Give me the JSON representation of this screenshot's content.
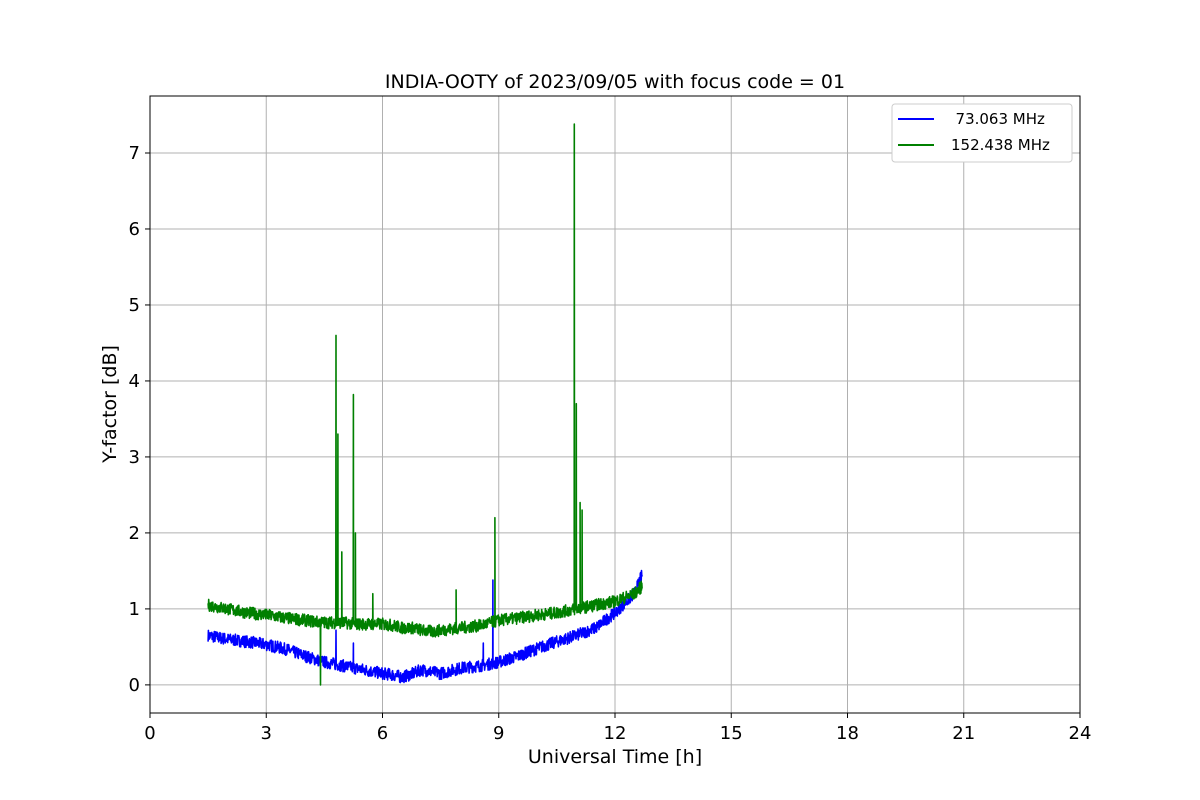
{
  "chart_data": {
    "type": "line",
    "title": "INDIA-OOTY of 2023/09/05 with focus code = 01",
    "xlabel": "Universal Time [h]",
    "ylabel": "Y-factor [dB]",
    "xlim": [
      0,
      24
    ],
    "ylim": [
      -0.37,
      7.75
    ],
    "xticks": [
      0,
      3,
      6,
      9,
      12,
      15,
      18,
      21,
      24
    ],
    "yticks": [
      0,
      1,
      2,
      3,
      4,
      5,
      6,
      7
    ],
    "grid": true,
    "legend_position": "top-right",
    "series": [
      {
        "name": "  73.063 MHz",
        "color": "#0000ff",
        "x": [
          1.5,
          2.0,
          2.5,
          3.0,
          3.5,
          4.0,
          4.3,
          4.5,
          4.8,
          5.0,
          5.3,
          5.5,
          5.8,
          6.0,
          6.3,
          6.5,
          6.8,
          7.0,
          7.3,
          7.5,
          8.0,
          8.5,
          8.8,
          9.0,
          9.5,
          10.0,
          10.5,
          11.0,
          11.5,
          12.0,
          12.5,
          12.7
        ],
        "y": [
          0.65,
          0.6,
          0.57,
          0.53,
          0.47,
          0.38,
          0.33,
          0.3,
          0.27,
          0.25,
          0.22,
          0.2,
          0.17,
          0.15,
          0.13,
          0.1,
          0.15,
          0.2,
          0.17,
          0.15,
          0.22,
          0.25,
          0.28,
          0.3,
          0.38,
          0.48,
          0.57,
          0.65,
          0.75,
          0.95,
          1.2,
          1.45
        ]
      },
      {
        "name": "152.438 MHz",
        "color": "#008000",
        "x": [
          1.5,
          2.0,
          2.5,
          3.0,
          3.5,
          4.0,
          4.3,
          4.5,
          4.8,
          5.0,
          5.3,
          5.5,
          5.8,
          6.0,
          6.3,
          6.5,
          6.8,
          7.0,
          7.3,
          7.5,
          8.0,
          8.5,
          8.8,
          9.0,
          9.5,
          10.0,
          10.5,
          11.0,
          11.5,
          12.0,
          12.5,
          12.7
        ],
        "y": [
          1.05,
          1.0,
          0.95,
          0.92,
          0.88,
          0.85,
          0.83,
          0.82,
          0.82,
          0.82,
          0.8,
          0.8,
          0.8,
          0.8,
          0.78,
          0.75,
          0.75,
          0.72,
          0.7,
          0.72,
          0.75,
          0.78,
          0.82,
          0.85,
          0.88,
          0.92,
          0.95,
          1.0,
          1.05,
          1.1,
          1.2,
          1.3
        ]
      }
    ],
    "spikes": [
      {
        "series": 1,
        "x": 4.4,
        "y": 0.0
      },
      {
        "series": 1,
        "x": 4.8,
        "y": 4.6
      },
      {
        "series": 1,
        "x": 4.85,
        "y": 3.3
      },
      {
        "series": 1,
        "x": 4.95,
        "y": 1.75
      },
      {
        "series": 1,
        "x": 5.25,
        "y": 3.82
      },
      {
        "series": 1,
        "x": 5.3,
        "y": 2.0
      },
      {
        "series": 1,
        "x": 5.75,
        "y": 1.2
      },
      {
        "series": 1,
        "x": 7.9,
        "y": 1.25
      },
      {
        "series": 1,
        "x": 8.9,
        "y": 2.2
      },
      {
        "series": 1,
        "x": 10.95,
        "y": 7.38
      },
      {
        "series": 1,
        "x": 11.0,
        "y": 3.7
      },
      {
        "series": 1,
        "x": 11.1,
        "y": 2.4
      },
      {
        "series": 1,
        "x": 11.15,
        "y": 2.3
      },
      {
        "series": 0,
        "x": 4.8,
        "y": 0.72
      },
      {
        "series": 0,
        "x": 5.25,
        "y": 0.55
      },
      {
        "series": 0,
        "x": 8.85,
        "y": 1.38
      },
      {
        "series": 0,
        "x": 8.6,
        "y": 0.55
      }
    ]
  }
}
